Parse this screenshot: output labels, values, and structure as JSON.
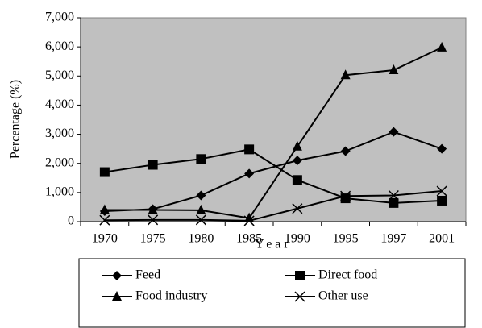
{
  "chart_data": {
    "type": "line",
    "x_label": "Year",
    "y_label": "Percentage (%)",
    "categories": [
      "1970",
      "1975",
      "1980",
      "1985",
      "1990",
      "1995",
      "1997",
      "2001"
    ],
    "series": [
      {
        "name": "Feed",
        "color": "#000000",
        "marker": "diamond",
        "values": [
          360,
          430,
          900,
          1650,
          2100,
          2420,
          3080,
          2500
        ]
      },
      {
        "name": "Direct food",
        "color": "#000000",
        "marker": "square",
        "values": [
          1700,
          1950,
          2150,
          2480,
          1430,
          800,
          640,
          720
        ]
      },
      {
        "name": "Food industry",
        "color": "#000000",
        "marker": "triangle",
        "values": [
          400,
          400,
          390,
          120,
          2580,
          5030,
          5200,
          5980
        ]
      },
      {
        "name": "Other use",
        "color": "#000000",
        "marker": "x",
        "values": [
          50,
          60,
          60,
          30,
          450,
          880,
          900,
          1050
        ]
      }
    ],
    "ylim": [
      0,
      7000
    ],
    "yticks": [
      0,
      {
        "value": 1000,
        "label": "1,000"
      },
      {
        "value": 2000,
        "label": "2,000"
      },
      {
        "value": 3000,
        "label": "3,000"
      },
      {
        "value": 4000,
        "label": "4,000"
      },
      {
        "value": 5000,
        "label": "5,000"
      },
      {
        "value": 6000,
        "label": "6,000"
      },
      {
        "value": 7000,
        "label": "7,000"
      }
    ],
    "plot_background": "#c0c0c0",
    "legend": "bottom"
  }
}
